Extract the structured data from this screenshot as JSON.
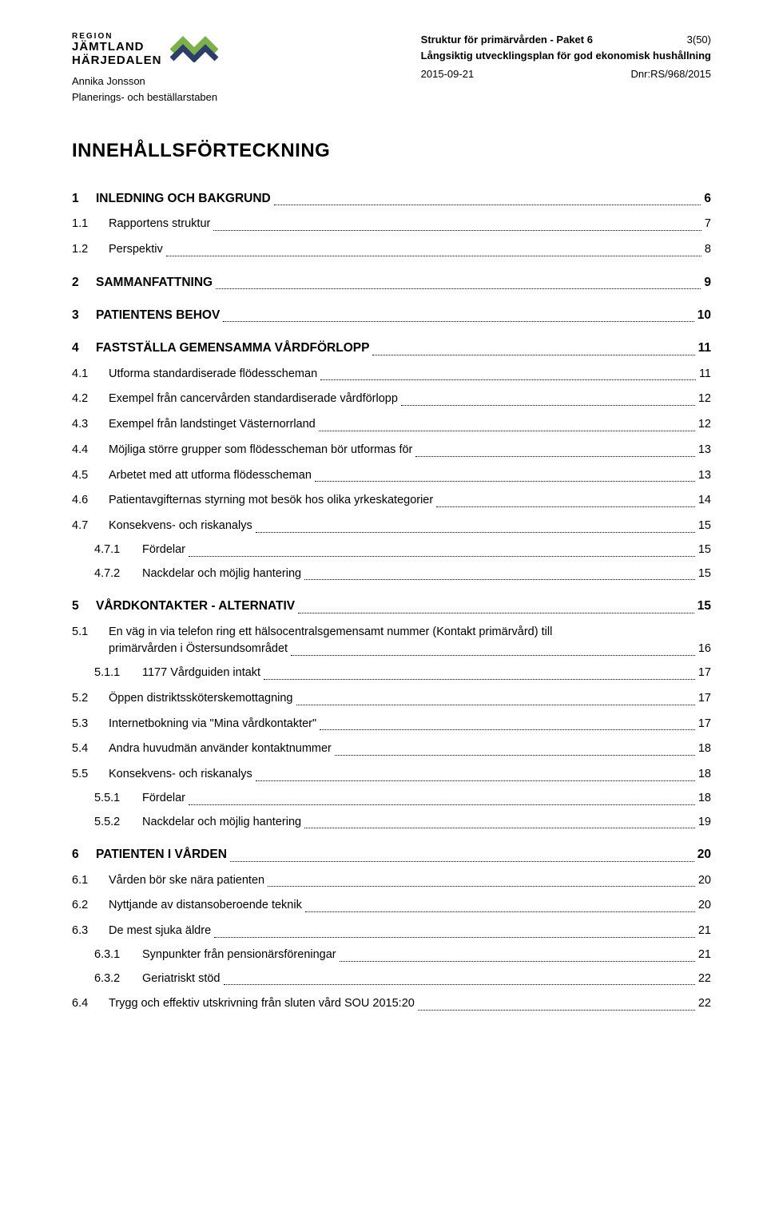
{
  "header": {
    "logo": {
      "region": "REGION",
      "line1": "JÄMTLAND",
      "line2": "HÄRJEDALEN",
      "colors": {
        "green": "#7bb04a",
        "teal": "#4aa3a3",
        "navy": "#2a3e66"
      }
    },
    "author": "Annika Jonsson",
    "department": "Planerings- och beställarstaben",
    "doc_title1": "Struktur för primärvården - Paket 6",
    "doc_title2": "Långsiktig utvecklingsplan för god ekonomisk hushållning",
    "date": "2015-09-21",
    "dnr": "Dnr:RS/968/2015",
    "page": "3(50)"
  },
  "toc_title": "INNEHÅLLSFÖRTECKNING",
  "entries": [
    {
      "level": 1,
      "num": "1",
      "label": "INLEDNING OCH BAKGRUND",
      "page": "6"
    },
    {
      "level": 2,
      "num": "1.1",
      "label": "Rapportens struktur",
      "page": "7"
    },
    {
      "level": 2,
      "num": "1.2",
      "label": "Perspektiv",
      "page": "8"
    },
    {
      "level": 1,
      "num": "2",
      "label": "SAMMANFATTNING",
      "page": "9"
    },
    {
      "level": 1,
      "num": "3",
      "label": "PATIENTENS BEHOV",
      "page": "10"
    },
    {
      "level": 1,
      "num": "4",
      "label": "FASTSTÄLLA GEMENSAMMA VÅRDFÖRLOPP",
      "page": "11"
    },
    {
      "level": 2,
      "num": "4.1",
      "label": "Utforma standardiserade flödesscheman",
      "page": "11"
    },
    {
      "level": 2,
      "num": "4.2",
      "label": "Exempel från cancervården standardiserade vårdförlopp",
      "page": "12"
    },
    {
      "level": 2,
      "num": "4.3",
      "label": "Exempel från landstinget Västernorrland",
      "page": "12"
    },
    {
      "level": 2,
      "num": "4.4",
      "label": "Möjliga större grupper som flödesscheman bör utformas för",
      "page": "13"
    },
    {
      "level": 2,
      "num": "4.5",
      "label": "Arbetet med att utforma flödesscheman",
      "page": "13"
    },
    {
      "level": 2,
      "num": "4.6",
      "label": "Patientavgifternas styrning mot besök hos olika yrkeskategorier",
      "page": "14"
    },
    {
      "level": 2,
      "num": "4.7",
      "label": "Konsekvens- och riskanalys",
      "page": "15"
    },
    {
      "level": 3,
      "num": "4.7.1",
      "label": "Fördelar",
      "page": "15"
    },
    {
      "level": 3,
      "num": "4.7.2",
      "label": "Nackdelar och möjlig hantering",
      "page": "15"
    },
    {
      "level": 1,
      "num": "5",
      "label": "VÅRDKONTAKTER - ALTERNATIV",
      "page": "15"
    },
    {
      "level": 2,
      "num": "5.1",
      "label_multiline": [
        "En väg in via telefon ring ett hälsocentralsgemensamt nummer (<i>Kontakt primärvård</i>) till",
        "primärvården i Östersundsområdet"
      ],
      "page": "16"
    },
    {
      "level": 3,
      "num": "5.1.1",
      "label": "1177 Vårdguiden intakt",
      "page": "17"
    },
    {
      "level": 2,
      "num": "5.2",
      "label": "Öppen distriktssköterskemottagning",
      "page": "17"
    },
    {
      "level": 2,
      "num": "5.3",
      "label": "Internetbokning via \"Mina vårdkontakter\"",
      "page": "17"
    },
    {
      "level": 2,
      "num": "5.4",
      "label": "Andra huvudmän använder kontaktnummer",
      "page": "18"
    },
    {
      "level": 2,
      "num": "5.5",
      "label": "Konsekvens- och riskanalys",
      "page": "18"
    },
    {
      "level": 3,
      "num": "5.5.1",
      "label": "Fördelar",
      "page": "18"
    },
    {
      "level": 3,
      "num": "5.5.2",
      "label": "Nackdelar och möjlig hantering",
      "page": "19"
    },
    {
      "level": 1,
      "num": "6",
      "label": "PATIENTEN I VÅRDEN",
      "page": "20"
    },
    {
      "level": 2,
      "num": "6.1",
      "label": "Vården bör ske nära patienten",
      "page": "20"
    },
    {
      "level": 2,
      "num": "6.2",
      "label": "Nyttjande av distansoberoende teknik",
      "page": "20"
    },
    {
      "level": 2,
      "num": "6.3",
      "label": "De mest sjuka äldre",
      "page": "21"
    },
    {
      "level": 3,
      "num": "6.3.1",
      "label": "Synpunkter från pensionärsföreningar",
      "page": "21"
    },
    {
      "level": 3,
      "num": "6.3.2",
      "label": "Geriatriskt stöd",
      "page": "22"
    },
    {
      "level": 2,
      "num": "6.4",
      "label": "Trygg och effektiv utskrivning från sluten vård SOU 2015:20",
      "page": "22"
    }
  ]
}
